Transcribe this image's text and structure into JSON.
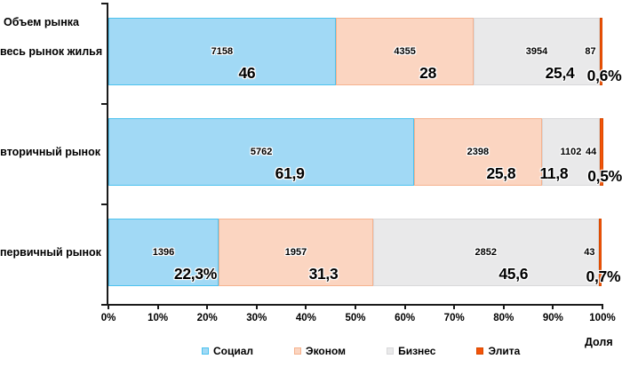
{
  "title": "Объем рынка",
  "x_axis_caption": "Доля",
  "axis": {
    "tick_labels": [
      "0%",
      "10%",
      "20%",
      "30%",
      "40%",
      "50%",
      "60%",
      "70%",
      "80%",
      "90%",
      "100%"
    ],
    "axis_color": "#1a1a1a"
  },
  "legend": [
    {
      "label": "Социал",
      "fill": "#a1d9f5",
      "border": "#4cc2ee"
    },
    {
      "label": "Эконом",
      "fill": "#fbd5c1",
      "border": "#f5b28e"
    },
    {
      "label": "Бизнес",
      "fill": "#e9e9ea",
      "border": "#d8d8da"
    },
    {
      "label": "Элита",
      "fill": "#f4530a",
      "border": "#d64a00"
    }
  ],
  "chart_data": {
    "type": "bar",
    "orientation": "horizontal",
    "stacked": "percent",
    "title": "Объем рынка",
    "xlabel": "Доля",
    "xlim": [
      0,
      100
    ],
    "legend_position": "bottom",
    "categories": [
      "весь рынок жилья",
      "вторичный рынок",
      "первичный рынок"
    ],
    "series": [
      {
        "name": "Социал",
        "values": [
          7158,
          5762,
          1396
        ],
        "pct": [
          46,
          61.9,
          22.3
        ],
        "pct_labels": [
          "46",
          "61,9",
          "22,3%"
        ]
      },
      {
        "name": "Эконом",
        "values": [
          4355,
          2398,
          1957
        ],
        "pct": [
          28,
          25.8,
          31.3
        ],
        "pct_labels": [
          "28",
          "25,8",
          "31,3"
        ]
      },
      {
        "name": "Бизнес",
        "values": [
          3954,
          1102,
          2852
        ],
        "pct": [
          25.4,
          11.8,
          45.6
        ],
        "pct_labels": [
          "25,4",
          "11,8",
          "45,6"
        ]
      },
      {
        "name": "Элита",
        "values": [
          87,
          44,
          43
        ],
        "pct": [
          0.6,
          0.5,
          0.7
        ],
        "pct_labels": [
          "0,6%",
          "0,5%",
          "0,7%"
        ]
      }
    ]
  }
}
